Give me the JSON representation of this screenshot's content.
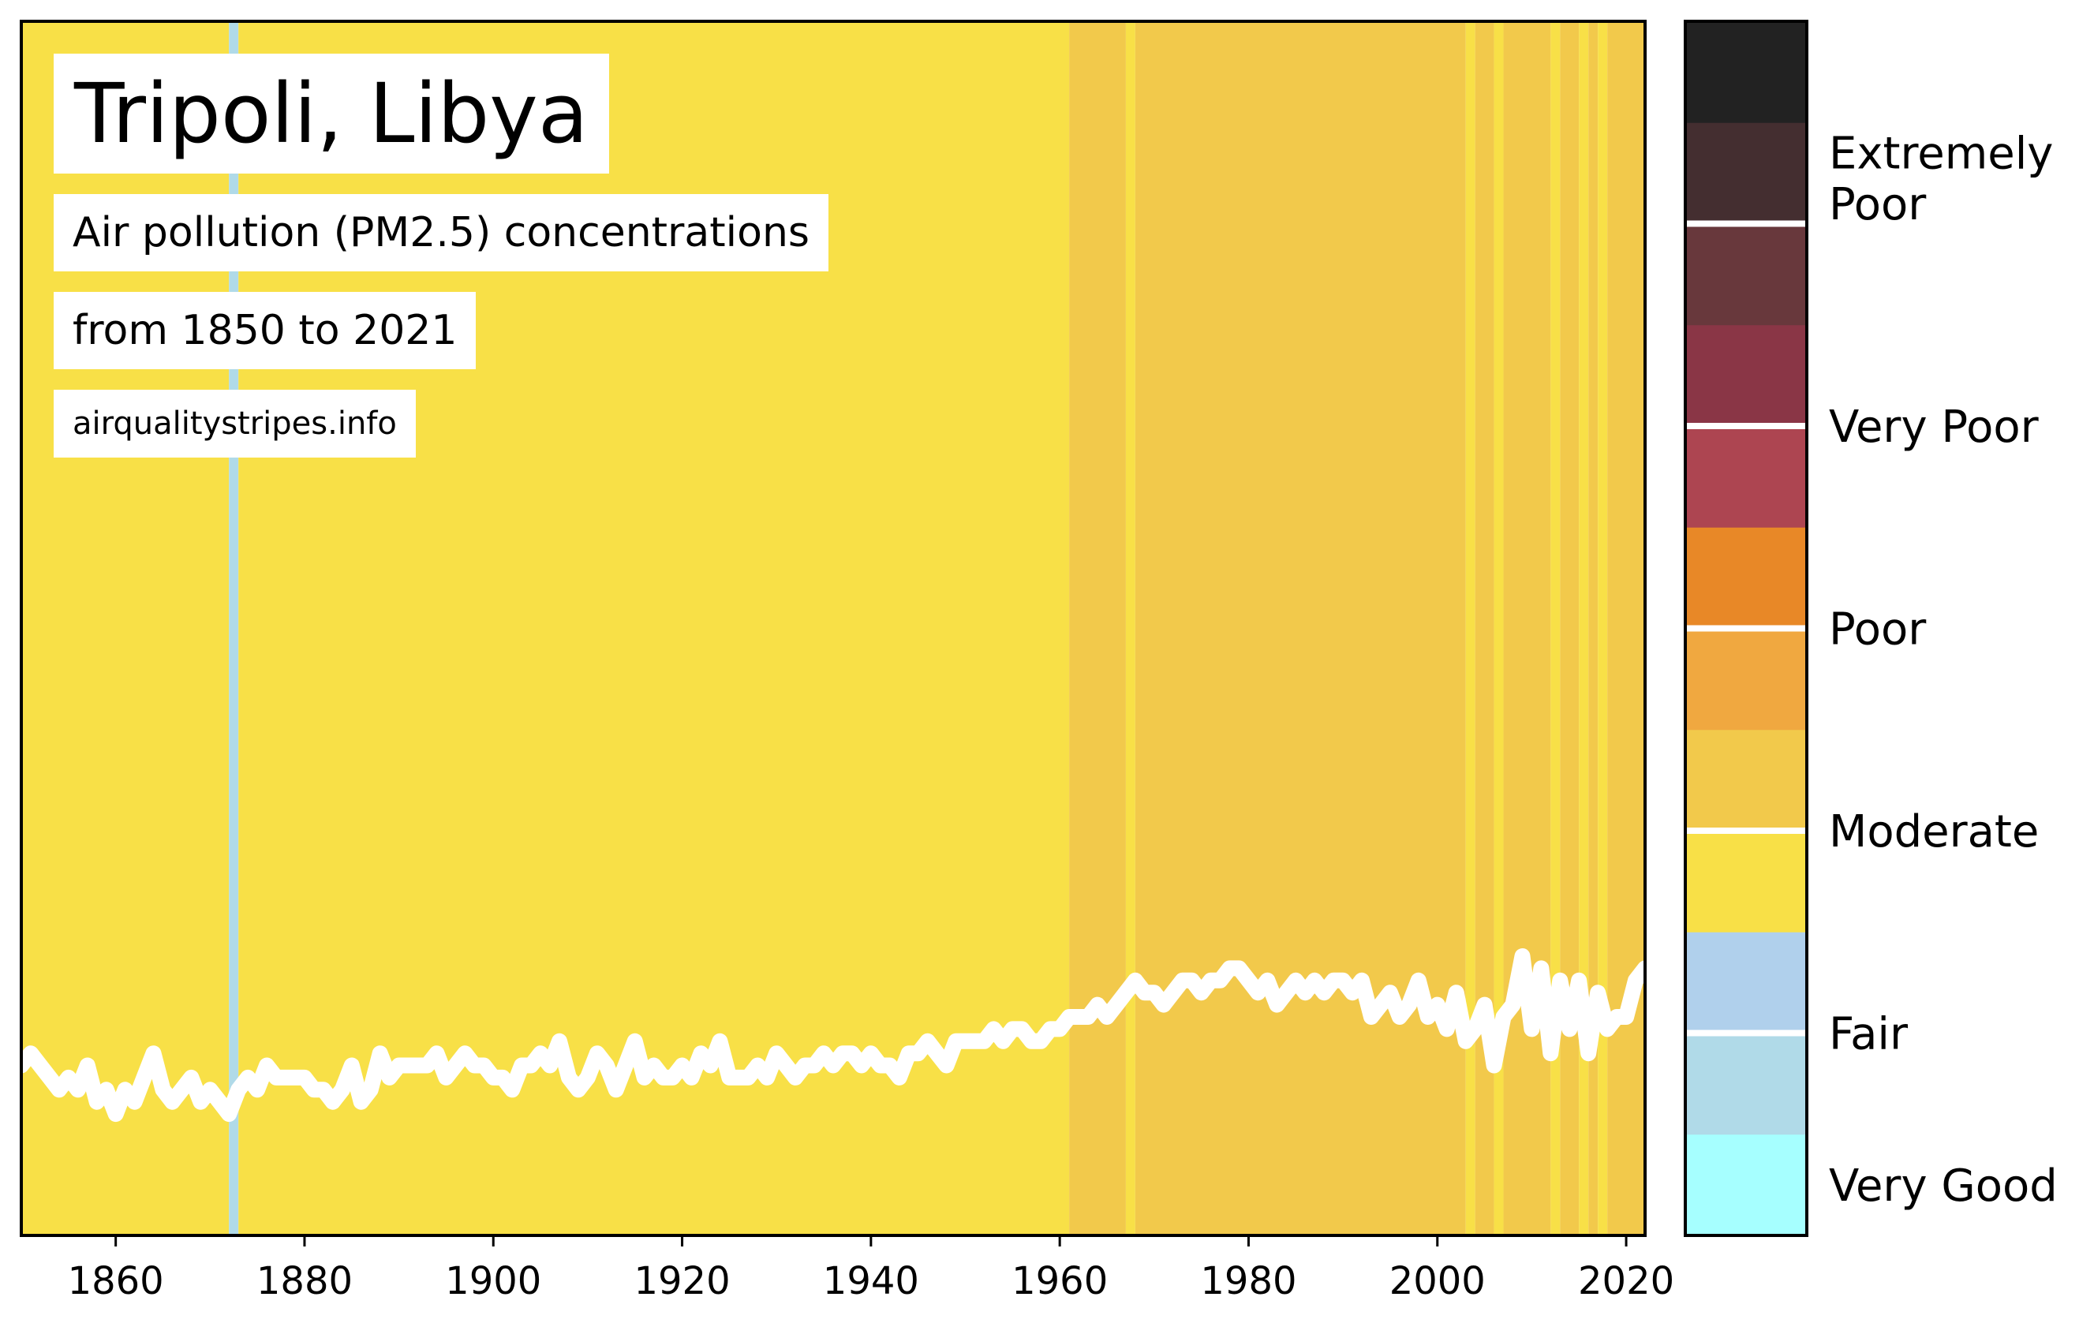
{
  "title": "Tripoli, Libya",
  "subtitle": "Air pollution (PM2.5) concentrations",
  "range_text": "from 1850 to 2021",
  "source": "airqualitystripes.info",
  "chart_data": {
    "type": "heatmap",
    "x_range": [
      1850,
      2022
    ],
    "x_ticks": [
      1860,
      1880,
      1900,
      1920,
      1940,
      1960,
      1980,
      2000,
      2020
    ],
    "colors": {
      "very_good": "#a6ffff",
      "fair_light": "#b0dae8",
      "fair": "#b0d0ec",
      "moderate_light": "#f8e047",
      "moderate": "#f2c94b",
      "poor_light": "#f0a840",
      "poor": "#e88827",
      "very_poor_light": "#ad4551",
      "very_poor": "#8a3646",
      "extremely_poor_light": "#68383c",
      "extremely_poor": "#442e30",
      "worst": "#222222",
      "line": "#ffffff",
      "separator": "#ffffff",
      "frame": "#000000"
    },
    "stripes": [
      {
        "from": 1850,
        "to": 1872,
        "color": "moderate_light"
      },
      {
        "from": 1872,
        "to": 1873,
        "color": "fair_light"
      },
      {
        "from": 1873,
        "to": 1961,
        "color": "moderate_light"
      },
      {
        "from": 1961,
        "to": 1967,
        "color": "moderate"
      },
      {
        "from": 1967,
        "to": 1968,
        "color": "moderate_light"
      },
      {
        "from": 1968,
        "to": 2003,
        "color": "moderate"
      },
      {
        "from": 2003,
        "to": 2004,
        "color": "moderate_light"
      },
      {
        "from": 2004,
        "to": 2006,
        "color": "moderate"
      },
      {
        "from": 2006,
        "to": 2007,
        "color": "moderate_light"
      },
      {
        "from": 2007,
        "to": 2012,
        "color": "moderate"
      },
      {
        "from": 2012,
        "to": 2013,
        "color": "moderate_light"
      },
      {
        "from": 2013,
        "to": 2015,
        "color": "moderate"
      },
      {
        "from": 2015,
        "to": 2016,
        "color": "moderate_light"
      },
      {
        "from": 2016,
        "to": 2017,
        "color": "moderate"
      },
      {
        "from": 2017,
        "to": 2018,
        "color": "moderate_light"
      },
      {
        "from": 2018,
        "to": 2022,
        "color": "moderate"
      }
    ],
    "line_ylim": [
      0,
      1
    ],
    "line_series": [
      [
        1850,
        0.14
      ],
      [
        1851,
        0.15
      ],
      [
        1852,
        0.14
      ],
      [
        1853,
        0.13
      ],
      [
        1854,
        0.12
      ],
      [
        1855,
        0.13
      ],
      [
        1856,
        0.12
      ],
      [
        1857,
        0.14
      ],
      [
        1858,
        0.11
      ],
      [
        1859,
        0.12
      ],
      [
        1860,
        0.1
      ],
      [
        1861,
        0.12
      ],
      [
        1862,
        0.11
      ],
      [
        1863,
        0.13
      ],
      [
        1864,
        0.15
      ],
      [
        1865,
        0.12
      ],
      [
        1866,
        0.11
      ],
      [
        1867,
        0.12
      ],
      [
        1868,
        0.13
      ],
      [
        1869,
        0.11
      ],
      [
        1870,
        0.12
      ],
      [
        1871,
        0.11
      ],
      [
        1872,
        0.1
      ],
      [
        1873,
        0.12
      ],
      [
        1874,
        0.13
      ],
      [
        1875,
        0.12
      ],
      [
        1876,
        0.14
      ],
      [
        1877,
        0.13
      ],
      [
        1878,
        0.13
      ],
      [
        1879,
        0.13
      ],
      [
        1880,
        0.13
      ],
      [
        1881,
        0.12
      ],
      [
        1882,
        0.12
      ],
      [
        1883,
        0.11
      ],
      [
        1884,
        0.12
      ],
      [
        1885,
        0.14
      ],
      [
        1886,
        0.11
      ],
      [
        1887,
        0.12
      ],
      [
        1888,
        0.15
      ],
      [
        1889,
        0.13
      ],
      [
        1890,
        0.14
      ],
      [
        1891,
        0.14
      ],
      [
        1892,
        0.14
      ],
      [
        1893,
        0.14
      ],
      [
        1894,
        0.15
      ],
      [
        1895,
        0.13
      ],
      [
        1896,
        0.14
      ],
      [
        1897,
        0.15
      ],
      [
        1898,
        0.14
      ],
      [
        1899,
        0.14
      ],
      [
        1900,
        0.13
      ],
      [
        1901,
        0.13
      ],
      [
        1902,
        0.12
      ],
      [
        1903,
        0.14
      ],
      [
        1904,
        0.14
      ],
      [
        1905,
        0.15
      ],
      [
        1906,
        0.14
      ],
      [
        1907,
        0.16
      ],
      [
        1908,
        0.13
      ],
      [
        1909,
        0.12
      ],
      [
        1910,
        0.13
      ],
      [
        1911,
        0.15
      ],
      [
        1912,
        0.14
      ],
      [
        1913,
        0.12
      ],
      [
        1914,
        0.14
      ],
      [
        1915,
        0.16
      ],
      [
        1916,
        0.13
      ],
      [
        1917,
        0.14
      ],
      [
        1918,
        0.13
      ],
      [
        1919,
        0.13
      ],
      [
        1920,
        0.14
      ],
      [
        1921,
        0.13
      ],
      [
        1922,
        0.15
      ],
      [
        1923,
        0.14
      ],
      [
        1924,
        0.16
      ],
      [
        1925,
        0.13
      ],
      [
        1926,
        0.13
      ],
      [
        1927,
        0.13
      ],
      [
        1928,
        0.14
      ],
      [
        1929,
        0.13
      ],
      [
        1930,
        0.15
      ],
      [
        1931,
        0.14
      ],
      [
        1932,
        0.13
      ],
      [
        1933,
        0.14
      ],
      [
        1934,
        0.14
      ],
      [
        1935,
        0.15
      ],
      [
        1936,
        0.14
      ],
      [
        1937,
        0.15
      ],
      [
        1938,
        0.15
      ],
      [
        1939,
        0.14
      ],
      [
        1940,
        0.15
      ],
      [
        1941,
        0.14
      ],
      [
        1942,
        0.14
      ],
      [
        1943,
        0.13
      ],
      [
        1944,
        0.15
      ],
      [
        1945,
        0.15
      ],
      [
        1946,
        0.16
      ],
      [
        1947,
        0.15
      ],
      [
        1948,
        0.14
      ],
      [
        1949,
        0.16
      ],
      [
        1950,
        0.16
      ],
      [
        1951,
        0.16
      ],
      [
        1952,
        0.16
      ],
      [
        1953,
        0.17
      ],
      [
        1954,
        0.16
      ],
      [
        1955,
        0.17
      ],
      [
        1956,
        0.17
      ],
      [
        1957,
        0.16
      ],
      [
        1958,
        0.16
      ],
      [
        1959,
        0.17
      ],
      [
        1960,
        0.17
      ],
      [
        1961,
        0.18
      ],
      [
        1962,
        0.18
      ],
      [
        1963,
        0.18
      ],
      [
        1964,
        0.19
      ],
      [
        1965,
        0.18
      ],
      [
        1966,
        0.19
      ],
      [
        1967,
        0.2
      ],
      [
        1968,
        0.21
      ],
      [
        1969,
        0.2
      ],
      [
        1970,
        0.2
      ],
      [
        1971,
        0.19
      ],
      [
        1972,
        0.2
      ],
      [
        1973,
        0.21
      ],
      [
        1974,
        0.21
      ],
      [
        1975,
        0.2
      ],
      [
        1976,
        0.21
      ],
      [
        1977,
        0.21
      ],
      [
        1978,
        0.22
      ],
      [
        1979,
        0.22
      ],
      [
        1980,
        0.21
      ],
      [
        1981,
        0.2
      ],
      [
        1982,
        0.21
      ],
      [
        1983,
        0.19
      ],
      [
        1984,
        0.2
      ],
      [
        1985,
        0.21
      ],
      [
        1986,
        0.2
      ],
      [
        1987,
        0.21
      ],
      [
        1988,
        0.2
      ],
      [
        1989,
        0.21
      ],
      [
        1990,
        0.21
      ],
      [
        1991,
        0.2
      ],
      [
        1992,
        0.21
      ],
      [
        1993,
        0.18
      ],
      [
        1994,
        0.19
      ],
      [
        1995,
        0.2
      ],
      [
        1996,
        0.18
      ],
      [
        1997,
        0.19
      ],
      [
        1998,
        0.21
      ],
      [
        1999,
        0.18
      ],
      [
        2000,
        0.19
      ],
      [
        2001,
        0.17
      ],
      [
        2002,
        0.2
      ],
      [
        2003,
        0.16
      ],
      [
        2004,
        0.17
      ],
      [
        2005,
        0.19
      ],
      [
        2006,
        0.14
      ],
      [
        2007,
        0.18
      ],
      [
        2008,
        0.19
      ],
      [
        2009,
        0.23
      ],
      [
        2010,
        0.17
      ],
      [
        2011,
        0.22
      ],
      [
        2012,
        0.15
      ],
      [
        2013,
        0.21
      ],
      [
        2014,
        0.17
      ],
      [
        2015,
        0.21
      ],
      [
        2016,
        0.15
      ],
      [
        2017,
        0.2
      ],
      [
        2018,
        0.17
      ],
      [
        2019,
        0.18
      ],
      [
        2020,
        0.18
      ],
      [
        2021,
        0.21
      ],
      [
        2022,
        0.22
      ]
    ],
    "legend": {
      "blocks": [
        "very_good",
        "fair_light",
        "fair",
        "moderate_light",
        "moderate",
        "poor_light",
        "poor",
        "very_poor_light",
        "very_poor",
        "extremely_poor_light",
        "extremely_poor",
        "worst"
      ],
      "separators_after": [
        1,
        3,
        5,
        7,
        9
      ],
      "labels": [
        {
          "text": "Very Good",
          "at": 0.5
        },
        {
          "text": "Fair",
          "at": 2.0
        },
        {
          "text": "Moderate",
          "at": 4.0
        },
        {
          "text": "Poor",
          "at": 6.0
        },
        {
          "text": "Very Poor",
          "at": 8.0
        },
        {
          "text": "Extremely",
          "at": 10.7
        },
        {
          "text": "Poor",
          "at": 10.2
        }
      ]
    }
  }
}
